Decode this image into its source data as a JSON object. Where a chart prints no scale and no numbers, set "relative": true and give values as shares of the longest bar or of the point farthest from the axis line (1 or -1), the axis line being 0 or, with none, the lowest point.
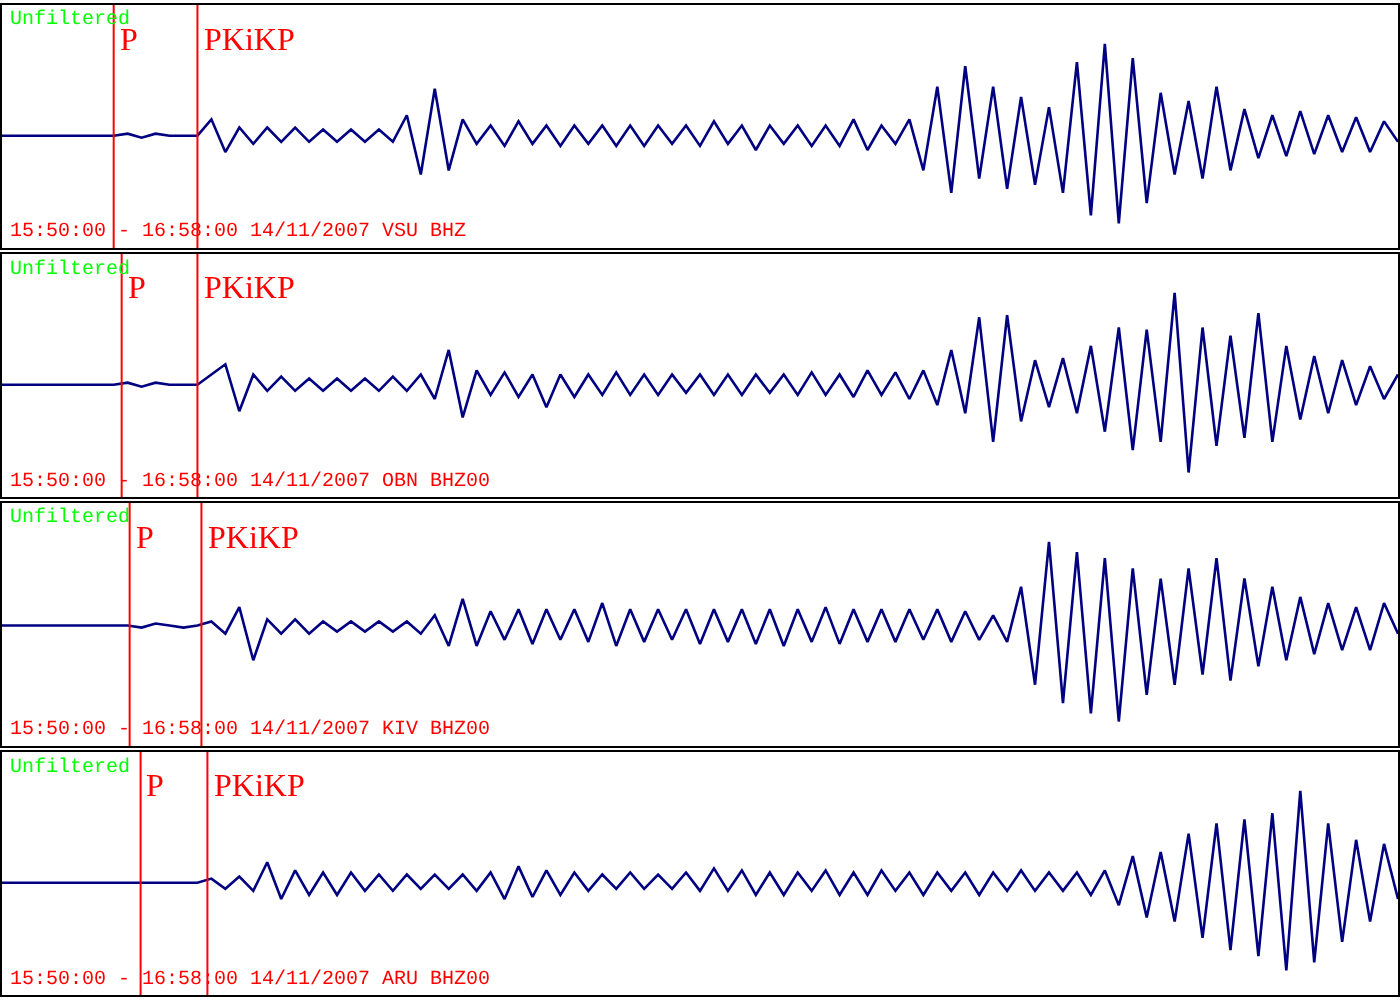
{
  "chart_data": [
    {
      "type": "line",
      "relative": true,
      "tick_labels": false,
      "categories": [
        null,
        null,
        null,
        null,
        null,
        null,
        null,
        null,
        null,
        null,
        null,
        null,
        null,
        null,
        null,
        null,
        null,
        null,
        null,
        null,
        null,
        null,
        null,
        null,
        null,
        null,
        null,
        null,
        null,
        null,
        null,
        null,
        null,
        null,
        null,
        null,
        null,
        null,
        null,
        null,
        null,
        null,
        null,
        null,
        null,
        null,
        null,
        null,
        null,
        null,
        null,
        null,
        null,
        null,
        null,
        null,
        null,
        null,
        null,
        null,
        null,
        null,
        null,
        null,
        null,
        null,
        null,
        null,
        null,
        null,
        null,
        null,
        null,
        null,
        null,
        null,
        null,
        null,
        null,
        null,
        null,
        null,
        null,
        null,
        null,
        null,
        null,
        null,
        null,
        null,
        null,
        null,
        null,
        null,
        null,
        null,
        null,
        null,
        null,
        null,
        null
      ],
      "series": [
        {
          "color": "#000080",
          "values": [
            0.55,
            0.55,
            0.55,
            0.55,
            0.55,
            0.55,
            0.55,
            0.55,
            0.55,
            0.56,
            0.54,
            0.56,
            0.55,
            0.55,
            0.55,
            0.63,
            0.47,
            0.59,
            0.51,
            0.59,
            0.52,
            0.59,
            0.52,
            0.58,
            0.52,
            0.58,
            0.52,
            0.58,
            0.52,
            0.65,
            0.36,
            0.78,
            0.38,
            0.63,
            0.51,
            0.6,
            0.5,
            0.62,
            0.51,
            0.6,
            0.5,
            0.6,
            0.51,
            0.6,
            0.5,
            0.6,
            0.5,
            0.6,
            0.51,
            0.6,
            0.5,
            0.62,
            0.51,
            0.6,
            0.48,
            0.6,
            0.51,
            0.6,
            0.5,
            0.6,
            0.5,
            0.63,
            0.48,
            0.6,
            0.51,
            0.63,
            0.38,
            0.79,
            0.27,
            0.89,
            0.34,
            0.79,
            0.29,
            0.74,
            0.31,
            0.69,
            0.27,
            0.91,
            0.16,
            1.0,
            0.12,
            0.93,
            0.22,
            0.76,
            0.36,
            0.72,
            0.34,
            0.79,
            0.38,
            0.68,
            0.44,
            0.65,
            0.45,
            0.67,
            0.46,
            0.65,
            0.47,
            0.64,
            0.47,
            0.62,
            0.52
          ]
        }
      ],
      "annotations": [
        "Unfiltered",
        "15:50:00 - 16:58:00 14/11/2007 VSU BHZ",
        "P",
        "PKiKP"
      ]
    },
    {
      "type": "line",
      "relative": true,
      "tick_labels": false,
      "categories": [
        null,
        null,
        null,
        null,
        null,
        null,
        null,
        null,
        null,
        null,
        null,
        null,
        null,
        null,
        null,
        null,
        null,
        null,
        null,
        null,
        null,
        null,
        null,
        null,
        null,
        null,
        null,
        null,
        null,
        null,
        null,
        null,
        null,
        null,
        null,
        null,
        null,
        null,
        null,
        null,
        null,
        null,
        null,
        null,
        null,
        null,
        null,
        null,
        null,
        null,
        null,
        null,
        null,
        null,
        null,
        null,
        null,
        null,
        null,
        null,
        null,
        null,
        null,
        null,
        null,
        null,
        null,
        null,
        null,
        null,
        null,
        null,
        null,
        null,
        null,
        null,
        null,
        null,
        null,
        null,
        null,
        null,
        null,
        null,
        null,
        null,
        null,
        null,
        null,
        null,
        null,
        null,
        null,
        null,
        null,
        null,
        null,
        null,
        null,
        null,
        null
      ],
      "series": [
        {
          "color": "#000080",
          "values": [
            0.55,
            0.55,
            0.55,
            0.55,
            0.55,
            0.55,
            0.55,
            0.55,
            0.55,
            0.56,
            0.54,
            0.56,
            0.55,
            0.55,
            0.55,
            0.6,
            0.65,
            0.42,
            0.6,
            0.52,
            0.59,
            0.52,
            0.58,
            0.52,
            0.58,
            0.52,
            0.58,
            0.52,
            0.59,
            0.52,
            0.6,
            0.48,
            0.72,
            0.39,
            0.62,
            0.5,
            0.61,
            0.49,
            0.6,
            0.44,
            0.6,
            0.49,
            0.6,
            0.5,
            0.61,
            0.5,
            0.6,
            0.5,
            0.6,
            0.51,
            0.6,
            0.5,
            0.6,
            0.5,
            0.6,
            0.51,
            0.6,
            0.5,
            0.61,
            0.5,
            0.6,
            0.49,
            0.62,
            0.5,
            0.61,
            0.48,
            0.62,
            0.45,
            0.72,
            0.41,
            0.88,
            0.27,
            0.89,
            0.37,
            0.67,
            0.44,
            0.68,
            0.41,
            0.74,
            0.32,
            0.83,
            0.23,
            0.82,
            0.27,
            1.0,
            0.12,
            0.83,
            0.25,
            0.79,
            0.29,
            0.9,
            0.27,
            0.74,
            0.38,
            0.69,
            0.41,
            0.67,
            0.45,
            0.64,
            0.48,
            0.6
          ]
        }
      ],
      "annotations": [
        "Unfiltered",
        "15:50:00 - 16:58:00 14/11/2007 OBN BHZ00",
        "P",
        "PKiKP"
      ]
    },
    {
      "type": "line",
      "relative": true,
      "tick_labels": false,
      "categories": [
        null,
        null,
        null,
        null,
        null,
        null,
        null,
        null,
        null,
        null,
        null,
        null,
        null,
        null,
        null,
        null,
        null,
        null,
        null,
        null,
        null,
        null,
        null,
        null,
        null,
        null,
        null,
        null,
        null,
        null,
        null,
        null,
        null,
        null,
        null,
        null,
        null,
        null,
        null,
        null,
        null,
        null,
        null,
        null,
        null,
        null,
        null,
        null,
        null,
        null,
        null,
        null,
        null,
        null,
        null,
        null,
        null,
        null,
        null,
        null,
        null,
        null,
        null,
        null,
        null,
        null,
        null,
        null,
        null,
        null,
        null,
        null,
        null,
        null,
        null,
        null,
        null,
        null,
        null,
        null,
        null,
        null,
        null,
        null,
        null,
        null,
        null,
        null,
        null,
        null,
        null,
        null,
        null,
        null,
        null,
        null,
        null,
        null,
        null,
        null,
        null
      ],
      "series": [
        {
          "color": "#000080",
          "values": [
            0.59,
            0.59,
            0.59,
            0.59,
            0.59,
            0.59,
            0.59,
            0.59,
            0.59,
            0.59,
            0.58,
            0.6,
            0.59,
            0.58,
            0.59,
            0.61,
            0.55,
            0.68,
            0.42,
            0.62,
            0.55,
            0.62,
            0.55,
            0.61,
            0.56,
            0.61,
            0.56,
            0.61,
            0.56,
            0.61,
            0.55,
            0.64,
            0.49,
            0.72,
            0.49,
            0.66,
            0.52,
            0.67,
            0.5,
            0.67,
            0.52,
            0.67,
            0.51,
            0.7,
            0.49,
            0.67,
            0.51,
            0.67,
            0.52,
            0.67,
            0.5,
            0.67,
            0.51,
            0.67,
            0.5,
            0.67,
            0.49,
            0.67,
            0.51,
            0.68,
            0.5,
            0.67,
            0.51,
            0.67,
            0.51,
            0.67,
            0.52,
            0.67,
            0.51,
            0.66,
            0.52,
            0.64,
            0.51,
            0.78,
            0.3,
            1.0,
            0.21,
            0.95,
            0.16,
            0.92,
            0.12,
            0.87,
            0.25,
            0.82,
            0.3,
            0.87,
            0.35,
            0.92,
            0.32,
            0.82,
            0.39,
            0.78,
            0.42,
            0.73,
            0.45,
            0.7,
            0.47,
            0.68,
            0.47,
            0.7,
            0.55
          ]
        }
      ],
      "annotations": [
        "Unfiltered",
        "15:50:00 - 16:58:00 14/11/2007 KIV BHZ00",
        "P",
        "PKiKP"
      ]
    },
    {
      "type": "line",
      "relative": true,
      "tick_labels": false,
      "categories": [
        null,
        null,
        null,
        null,
        null,
        null,
        null,
        null,
        null,
        null,
        null,
        null,
        null,
        null,
        null,
        null,
        null,
        null,
        null,
        null,
        null,
        null,
        null,
        null,
        null,
        null,
        null,
        null,
        null,
        null,
        null,
        null,
        null,
        null,
        null,
        null,
        null,
        null,
        null,
        null,
        null,
        null,
        null,
        null,
        null,
        null,
        null,
        null,
        null,
        null,
        null,
        null,
        null,
        null,
        null,
        null,
        null,
        null,
        null,
        null,
        null,
        null,
        null,
        null,
        null,
        null,
        null,
        null,
        null,
        null,
        null,
        null,
        null,
        null,
        null,
        null,
        null,
        null,
        null,
        null,
        null,
        null,
        null,
        null,
        null,
        null,
        null,
        null,
        null,
        null,
        null,
        null,
        null,
        null,
        null,
        null,
        null,
        null,
        null,
        null,
        null
      ],
      "series": [
        {
          "color": "#000080",
          "values": [
            0.55,
            0.55,
            0.55,
            0.55,
            0.55,
            0.55,
            0.55,
            0.55,
            0.55,
            0.55,
            0.55,
            0.55,
            0.55,
            0.55,
            0.55,
            0.57,
            0.52,
            0.58,
            0.51,
            0.65,
            0.47,
            0.61,
            0.49,
            0.6,
            0.49,
            0.6,
            0.51,
            0.59,
            0.51,
            0.59,
            0.52,
            0.59,
            0.52,
            0.59,
            0.51,
            0.6,
            0.47,
            0.63,
            0.48,
            0.61,
            0.49,
            0.6,
            0.51,
            0.59,
            0.52,
            0.6,
            0.52,
            0.59,
            0.52,
            0.6,
            0.51,
            0.62,
            0.51,
            0.61,
            0.49,
            0.6,
            0.49,
            0.6,
            0.51,
            0.61,
            0.49,
            0.6,
            0.49,
            0.61,
            0.51,
            0.6,
            0.49,
            0.6,
            0.51,
            0.6,
            0.49,
            0.6,
            0.51,
            0.61,
            0.51,
            0.6,
            0.51,
            0.6,
            0.49,
            0.61,
            0.44,
            0.68,
            0.38,
            0.7,
            0.36,
            0.79,
            0.28,
            0.84,
            0.22,
            0.86,
            0.19,
            0.89,
            0.12,
            1.0,
            0.16,
            0.84,
            0.26,
            0.76,
            0.36,
            0.74,
            0.47
          ]
        }
      ],
      "annotations": [
        "Unfiltered",
        "15:50:00 - 16:58:00 14/11/2007 ARU BHZ00",
        "P",
        "PKiKP"
      ]
    }
  ]
}
